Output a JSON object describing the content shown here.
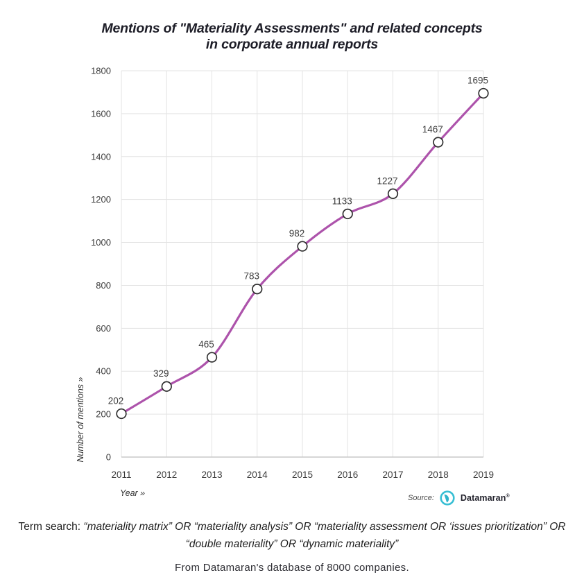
{
  "title": {
    "line1": "Mentions of \"Materiality Assessments\" and related concepts",
    "line2": "in corporate annual reports"
  },
  "chart_data": {
    "type": "line",
    "x": [
      2011,
      2012,
      2013,
      2014,
      2015,
      2016,
      2017,
      2018,
      2019
    ],
    "values": [
      202,
      329,
      465,
      783,
      982,
      1133,
      1227,
      1467,
      1695
    ],
    "title": "Mentions of \"Materiality Assessments\" and related concepts in corporate annual reports",
    "xlabel": "Year »",
    "ylabel": "Number of mentions »",
    "ylim": [
      0,
      1800
    ],
    "ytick_step": 200,
    "grid": true,
    "legend": "none",
    "line_color": "#ad53ab",
    "marker_fill": "#ffffff",
    "marker_stroke": "#2e2e2e",
    "grid_color": "#e3e3e3",
    "axis_color": "#c8c8c8",
    "tick_label_color": "#3a3a3a",
    "data_label_color": "#3c3c3c"
  },
  "source": {
    "label": "Source:",
    "brand": "Datamaran",
    "registered": "®",
    "logo_icon": "datamaran-logo",
    "logo_ring_color": "#39bfd4",
    "logo_glyph_color": "#2fb3ca"
  },
  "footnote": {
    "prefix": "Term search: ",
    "terms": "“materiality matrix” OR “materiality analysis” OR “materiality assessment OR ‘issues prioritization” OR “double materiality” OR “dynamic materiality”"
  },
  "caption": "From Datamaran's database of 8000 companies."
}
